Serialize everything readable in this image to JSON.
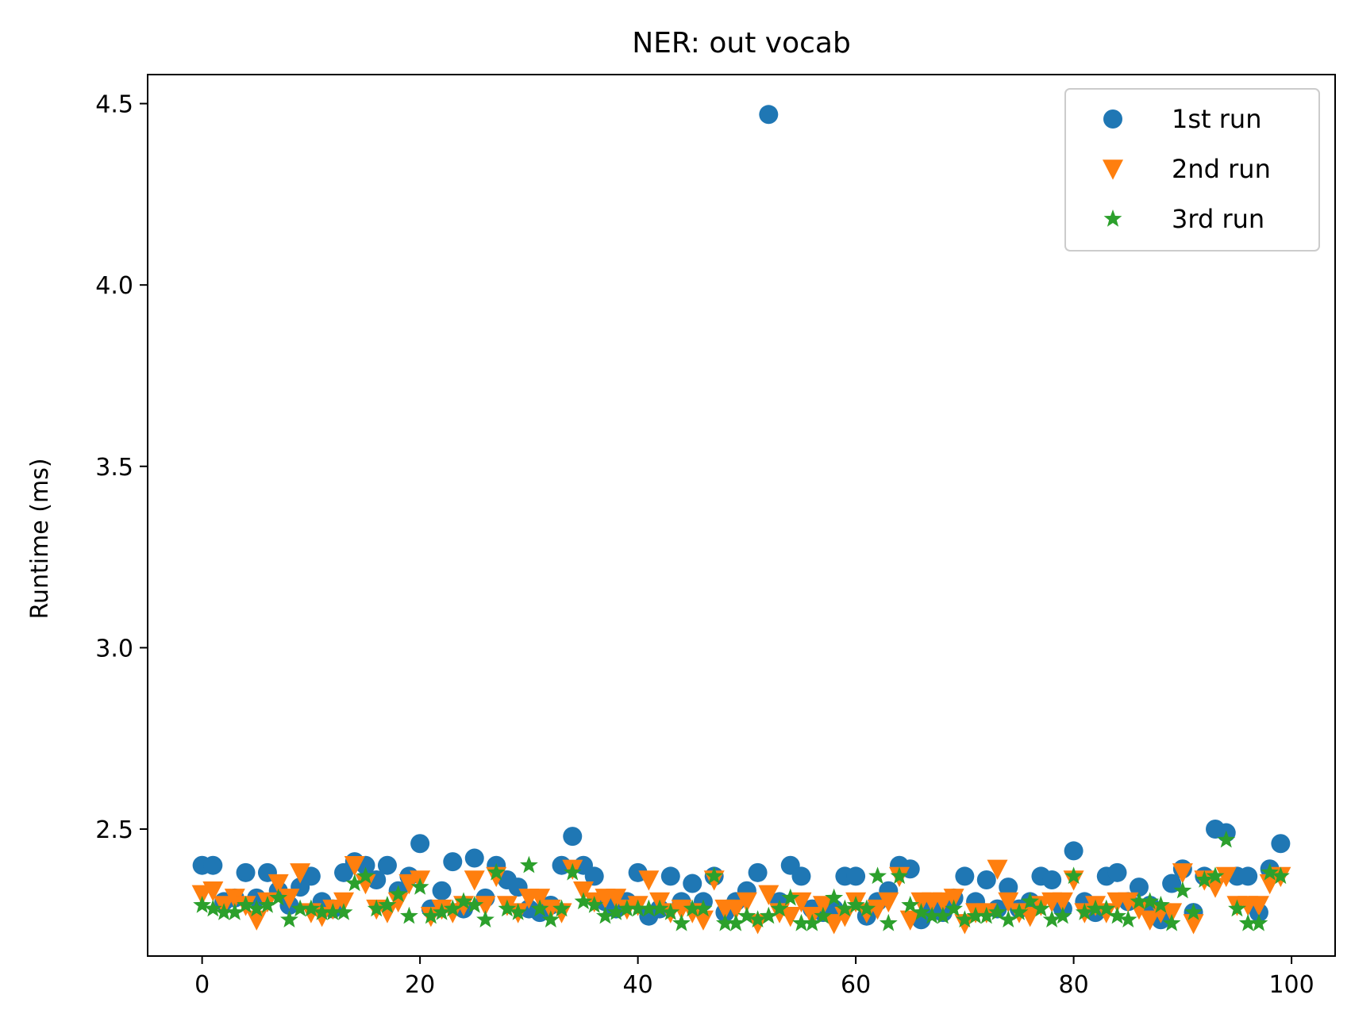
{
  "chart_data": {
    "type": "scatter",
    "title": "NER: out vocab",
    "xlabel": "",
    "ylabel": "Runtime (ms)",
    "xlim": [
      -5,
      104
    ],
    "ylim": [
      2.15,
      4.58
    ],
    "xticks": [
      0,
      20,
      40,
      60,
      80,
      100
    ],
    "yticks": [
      2.5,
      3.0,
      3.5,
      4.0,
      4.5
    ],
    "grid": false,
    "legend": "top-right",
    "series": [
      {
        "name": "1st run",
        "marker": "circle",
        "color": "#1f77b4",
        "values": [
          2.4,
          2.4,
          2.3,
          2.31,
          2.38,
          2.31,
          2.38,
          2.33,
          2.29,
          2.34,
          2.37,
          2.3,
          2.28,
          2.38,
          2.41,
          2.4,
          2.36,
          2.4,
          2.33,
          2.37,
          2.46,
          2.28,
          2.33,
          2.41,
          2.28,
          2.42,
          2.31,
          2.4,
          2.36,
          2.34,
          2.28,
          2.27,
          2.29,
          2.4,
          2.48,
          2.4,
          2.37,
          2.3,
          2.28,
          2.3,
          2.38,
          2.26,
          2.28,
          2.37,
          2.3,
          2.35,
          2.3,
          2.37,
          2.27,
          2.3,
          2.33,
          2.38,
          4.47,
          2.3,
          2.4,
          2.37,
          2.28,
          2.27,
          2.28,
          2.37,
          2.37,
          2.26,
          2.3,
          2.33,
          2.4,
          2.39,
          2.25,
          2.29,
          2.27,
          2.31,
          2.37,
          2.3,
          2.36,
          2.28,
          2.34,
          2.28,
          2.3,
          2.37,
          2.36,
          2.28,
          2.44,
          2.3,
          2.27,
          2.37,
          2.38,
          2.3,
          2.34,
          2.29,
          2.25,
          2.35,
          2.39,
          2.27,
          2.37,
          2.5,
          2.49,
          2.37,
          2.37,
          2.27,
          2.39,
          2.46
        ]
      },
      {
        "name": "2nd run",
        "marker": "triangle-down",
        "color": "#ff7f0e",
        "values": [
          2.32,
          2.33,
          2.29,
          2.31,
          2.29,
          2.25,
          2.3,
          2.35,
          2.31,
          2.38,
          2.27,
          2.26,
          2.28,
          2.3,
          2.4,
          2.35,
          2.28,
          2.27,
          2.3,
          2.35,
          2.36,
          2.26,
          2.28,
          2.27,
          2.29,
          2.36,
          2.29,
          2.37,
          2.29,
          2.27,
          2.31,
          2.31,
          2.28,
          2.27,
          2.39,
          2.33,
          2.3,
          2.31,
          2.31,
          2.28,
          2.29,
          2.36,
          2.3,
          2.27,
          2.28,
          2.27,
          2.25,
          2.36,
          2.28,
          2.28,
          2.3,
          2.24,
          2.32,
          2.27,
          2.26,
          2.3,
          2.26,
          2.29,
          2.24,
          2.26,
          2.3,
          2.27,
          2.28,
          2.3,
          2.37,
          2.25,
          2.3,
          2.3,
          2.3,
          2.31,
          2.24,
          2.27,
          2.27,
          2.39,
          2.3,
          2.27,
          2.26,
          2.29,
          2.3,
          2.3,
          2.36,
          2.27,
          2.29,
          2.27,
          2.3,
          2.3,
          2.28,
          2.25,
          2.27,
          2.27,
          2.38,
          2.24,
          2.36,
          2.34,
          2.37,
          2.29,
          2.29,
          2.29,
          2.35,
          2.37
        ]
      },
      {
        "name": "3rd run",
        "marker": "star",
        "color": "#2ca02c",
        "values": [
          2.29,
          2.28,
          2.27,
          2.27,
          2.29,
          2.28,
          2.29,
          2.31,
          2.25,
          2.28,
          2.28,
          2.27,
          2.27,
          2.27,
          2.35,
          2.37,
          2.28,
          2.29,
          2.32,
          2.26,
          2.34,
          2.26,
          2.27,
          2.28,
          2.3,
          2.29,
          2.25,
          2.38,
          2.28,
          2.27,
          2.4,
          2.28,
          2.25,
          2.28,
          2.38,
          2.3,
          2.29,
          2.26,
          2.27,
          2.28,
          2.28,
          2.28,
          2.28,
          2.27,
          2.24,
          2.28,
          2.28,
          2.37,
          2.24,
          2.24,
          2.26,
          2.25,
          2.26,
          2.28,
          2.31,
          2.24,
          2.24,
          2.26,
          2.31,
          2.28,
          2.29,
          2.28,
          2.37,
          2.24,
          2.37,
          2.29,
          2.27,
          2.26,
          2.26,
          2.28,
          2.25,
          2.26,
          2.26,
          2.27,
          2.25,
          2.27,
          2.3,
          2.28,
          2.25,
          2.26,
          2.37,
          2.27,
          2.28,
          2.28,
          2.26,
          2.25,
          2.3,
          2.3,
          2.29,
          2.24,
          2.33,
          2.27,
          2.36,
          2.37,
          2.47,
          2.28,
          2.24,
          2.24,
          2.38,
          2.37
        ]
      }
    ]
  }
}
